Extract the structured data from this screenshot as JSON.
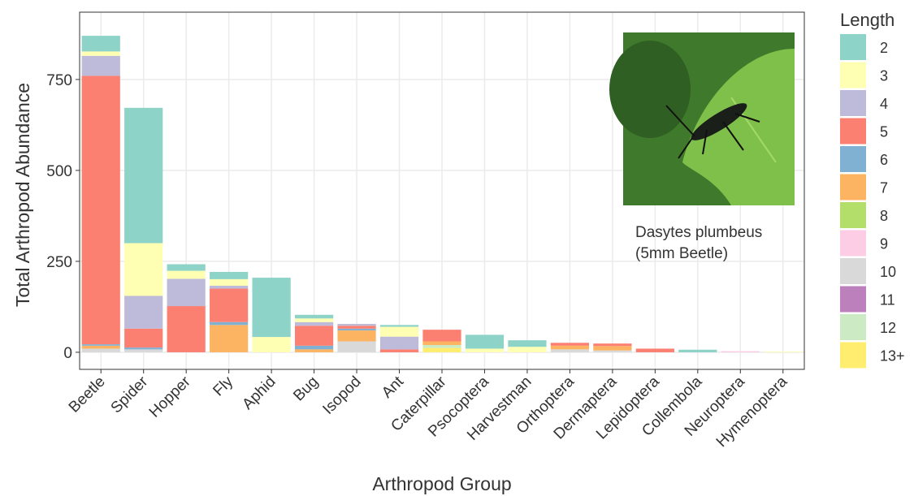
{
  "chart_data": {
    "type": "bar",
    "stacked": true,
    "x_label": "Arthropod Group",
    "y_label": "Total Arthropod Abundance",
    "legend_title": "Length",
    "grid": true,
    "annotation": [
      "Dasytes plumbeus",
      "(5mm Beetle)"
    ],
    "categories": [
      "Beetle",
      "Spider",
      "Hopper",
      "Fly",
      "Aphid",
      "Bug",
      "Isopod",
      "Ant",
      "Caterpillar",
      "Psocoptera",
      "Harvestman",
      "Orthoptera",
      "Dermaptera",
      "Lepidoptera",
      "Collembola",
      "Neuroptera",
      "Hymenoptera"
    ],
    "ylim": [
      -47,
      935
    ],
    "yticks": [
      0,
      250,
      500,
      750
    ],
    "series": [
      {
        "name": "2",
        "color": "#8dd3c7",
        "values": [
          43,
          372,
          18,
          20,
          163,
          10,
          0,
          5,
          0,
          38,
          18,
          0,
          0,
          0,
          7,
          0,
          0
        ]
      },
      {
        "name": "3",
        "color": "#ffffb3",
        "values": [
          12,
          145,
          22,
          18,
          42,
          10,
          0,
          27,
          0,
          10,
          15,
          0,
          0,
          0,
          0,
          0,
          2
        ]
      },
      {
        "name": "4",
        "color": "#bebada",
        "values": [
          55,
          90,
          75,
          8,
          0,
          10,
          5,
          35,
          0,
          0,
          0,
          0,
          0,
          0,
          0,
          0,
          0
        ]
      },
      {
        "name": "5",
        "color": "#fb8072",
        "values": [
          738,
          52,
          127,
          92,
          0,
          55,
          8,
          8,
          32,
          0,
          0,
          8,
          7,
          10,
          0,
          0,
          0
        ]
      },
      {
        "name": "6",
        "color": "#80b1d3",
        "values": [
          4,
          5,
          0,
          8,
          0,
          10,
          5,
          0,
          0,
          0,
          0,
          0,
          0,
          0,
          0,
          0,
          0
        ]
      },
      {
        "name": "7",
        "color": "#fdb462",
        "values": [
          8,
          0,
          0,
          75,
          0,
          8,
          30,
          0,
          10,
          0,
          0,
          10,
          12,
          0,
          0,
          0,
          0
        ]
      },
      {
        "name": "8",
        "color": "#b3de69",
        "values": [
          0,
          0,
          0,
          0,
          0,
          0,
          0,
          0,
          0,
          0,
          0,
          0,
          0,
          0,
          0,
          0,
          0
        ]
      },
      {
        "name": "9",
        "color": "#fccde5",
        "values": [
          0,
          0,
          0,
          0,
          0,
          0,
          0,
          0,
          0,
          0,
          0,
          0,
          0,
          0,
          0,
          3,
          0
        ]
      },
      {
        "name": "10",
        "color": "#d9d9d9",
        "values": [
          10,
          8,
          0,
          0,
          0,
          0,
          30,
          0,
          0,
          0,
          0,
          8,
          5,
          0,
          0,
          0,
          0
        ]
      },
      {
        "name": "11",
        "color": "#bc80bd",
        "values": [
          0,
          0,
          0,
          0,
          0,
          0,
          0,
          0,
          0,
          0,
          0,
          0,
          0,
          0,
          0,
          0,
          0
        ]
      },
      {
        "name": "12",
        "color": "#ccebc5",
        "values": [
          0,
          0,
          0,
          0,
          0,
          0,
          0,
          0,
          8,
          0,
          0,
          0,
          0,
          0,
          0,
          0,
          0
        ]
      },
      {
        "name": "13+",
        "color": "#ffed6f",
        "values": [
          0,
          0,
          0,
          0,
          0,
          0,
          0,
          0,
          12,
          0,
          0,
          0,
          0,
          0,
          0,
          0,
          0
        ]
      }
    ]
  }
}
